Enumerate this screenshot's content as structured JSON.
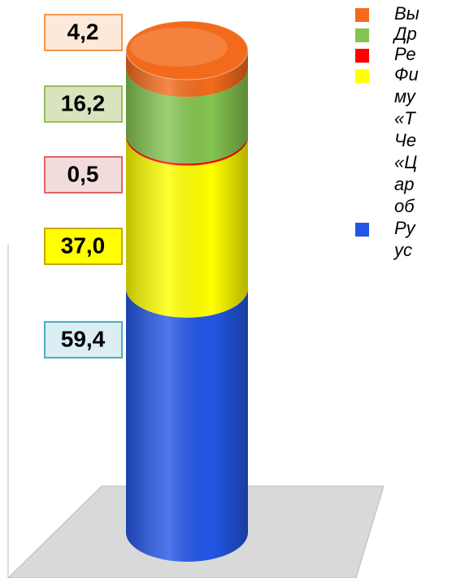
{
  "chart_data": {
    "type": "stacked-cylinder",
    "series": [
      {
        "name": "Ру\nус",
        "color": "#2356e6",
        "values": [
          59.4
        ],
        "value_labels": [
          "59,4"
        ],
        "label_fill": "#dbeef4",
        "label_border": "#4bacc6"
      },
      {
        "name": "Фи\nму\n«Т\nЧе\n«Ц\nар\nоб",
        "color": "#ffff00",
        "values": [
          37.0
        ],
        "value_labels": [
          "37,0"
        ],
        "label_fill": "#ffff00",
        "label_border": "#c9a800"
      },
      {
        "name": "Ре",
        "color": "#ff0000",
        "values": [
          0.5
        ],
        "value_labels": [
          "0,5"
        ],
        "label_fill": "#f2dcdb",
        "label_border": "#e06666"
      },
      {
        "name": "Др",
        "color": "#84c450",
        "values": [
          16.2
        ],
        "value_labels": [
          "16,2"
        ],
        "label_fill": "#d7e4bd",
        "label_border": "#9bbb59"
      },
      {
        "name": "Вы",
        "color": "#f26b1d",
        "values": [
          4.2
        ],
        "value_labels": [
          "4,2"
        ],
        "label_fill": "#fde9d9",
        "label_border": "#f79646"
      }
    ]
  }
}
